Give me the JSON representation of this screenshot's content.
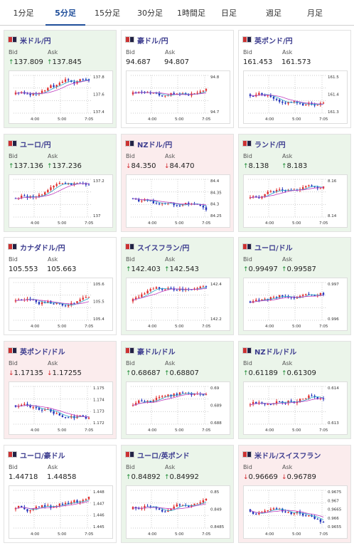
{
  "tabs": [
    "1分足",
    "5分足",
    "15分足",
    "30分足",
    "1時間足",
    "日足",
    "週足",
    "月足"
  ],
  "active_tab": 1,
  "labels": {
    "bid": "Bid",
    "ask": "Ask"
  },
  "colors": {
    "up": "#1b8a32",
    "down": "#d2262b",
    "candle_up": "#e03030",
    "candle_down": "#2233bb",
    "ma1": "#2aa7c9",
    "ma2": "#c040c0"
  },
  "cards": [
    {
      "pair": "米ドル/円",
      "bid": "137.809",
      "ask": "137.845",
      "bid_dir": "up",
      "ask_dir": "up",
      "trend": "up",
      "flag": "us-jp-flag-icon",
      "x_ticks": [
        "4:00",
        "5:00",
        "7:05"
      ],
      "y_ticks": [
        "137.8",
        "137.6",
        "137.4"
      ]
    },
    {
      "pair": "豪ドル/円",
      "bid": "94.687",
      "ask": "94.807",
      "bid_dir": "none",
      "ask_dir": "none",
      "trend": "neutral",
      "flag": "au-jp-flag-icon",
      "x_ticks": [
        "4:00",
        "5:00",
        "7:05"
      ],
      "y_ticks": [
        "94.8",
        "94.7"
      ]
    },
    {
      "pair": "英ポンド/円",
      "bid": "161.453",
      "ask": "161.573",
      "bid_dir": "none",
      "ask_dir": "none",
      "trend": "neutral",
      "flag": "gb-jp-flag-icon",
      "x_ticks": [
        "4:00",
        "5:00",
        "7:05"
      ],
      "y_ticks": [
        "161.5",
        "161.4",
        "161.3"
      ]
    },
    {
      "pair": "ユーロ/円",
      "bid": "137.136",
      "ask": "137.236",
      "bid_dir": "up",
      "ask_dir": "up",
      "trend": "up",
      "flag": "eu-jp-flag-icon",
      "x_ticks": [
        "4:00",
        "5:00",
        "7:05"
      ],
      "y_ticks": [
        "137.2",
        "137"
      ]
    },
    {
      "pair": "NZドル/円",
      "bid": "84.350",
      "ask": "84.470",
      "bid_dir": "down",
      "ask_dir": "down",
      "trend": "down",
      "flag": "nz-jp-flag-icon",
      "x_ticks": [
        "4:00",
        "5:00",
        "7:05"
      ],
      "y_ticks": [
        "84.4",
        "84.35",
        "84.3",
        "84.25"
      ]
    },
    {
      "pair": "ランド/円",
      "bid": "8.138",
      "ask": "8.183",
      "bid_dir": "up",
      "ask_dir": "up",
      "trend": "up",
      "flag": "za-jp-flag-icon",
      "x_ticks": [
        "4:00",
        "5:00",
        "7:05"
      ],
      "y_ticks": [
        "8.16",
        "8.14"
      ]
    },
    {
      "pair": "カナダドル/円",
      "bid": "105.553",
      "ask": "105.663",
      "bid_dir": "none",
      "ask_dir": "none",
      "trend": "neutral",
      "flag": "ca-jp-flag-icon",
      "x_ticks": [
        "4:00",
        "5:00",
        "7:05"
      ],
      "y_ticks": [
        "105.6",
        "105.5",
        "105.4"
      ]
    },
    {
      "pair": "スイスフラン/円",
      "bid": "142.403",
      "ask": "142.543",
      "bid_dir": "up",
      "ask_dir": "up",
      "trend": "up",
      "flag": "ch-jp-flag-icon",
      "x_ticks": [
        "4:00",
        "5:00",
        "7:05"
      ],
      "y_ticks": [
        "142.4",
        "142.2"
      ]
    },
    {
      "pair": "ユーロ/ドル",
      "bid": "0.99497",
      "ask": "0.99587",
      "bid_dir": "up",
      "ask_dir": "up",
      "trend": "up",
      "flag": "eu-us-flag-icon",
      "x_ticks": [
        "4:00",
        "5:00",
        "7:05"
      ],
      "y_ticks": [
        "0.997",
        "0.996"
      ]
    },
    {
      "pair": "英ポンド/ドル",
      "bid": "1.17135",
      "ask": "1.17255",
      "bid_dir": "down",
      "ask_dir": "down",
      "trend": "down",
      "flag": "gb-us-flag-icon",
      "x_ticks": [
        "4:00",
        "5:00",
        "7:05"
      ],
      "y_ticks": [
        "1.175",
        "1.174",
        "1.173",
        "1.172"
      ]
    },
    {
      "pair": "豪ドル/ドル",
      "bid": "0.68687",
      "ask": "0.68807",
      "bid_dir": "up",
      "ask_dir": "up",
      "trend": "up",
      "flag": "au-us-flag-icon",
      "x_ticks": [
        "4:00",
        "5:00",
        "7:05"
      ],
      "y_ticks": [
        "0.69",
        "0.689",
        "0.688"
      ]
    },
    {
      "pair": "NZドル/ドル",
      "bid": "0.61189",
      "ask": "0.61309",
      "bid_dir": "up",
      "ask_dir": "up",
      "trend": "up",
      "flag": "nz-us-flag-icon",
      "x_ticks": [
        "4:00",
        "5:00",
        "7:05"
      ],
      "y_ticks": [
        "0.614",
        "0.613"
      ]
    },
    {
      "pair": "ユーロ/豪ドル",
      "bid": "1.44718",
      "ask": "1.44858",
      "bid_dir": "none",
      "ask_dir": "none",
      "trend": "neutral",
      "flag": "eu-au-flag-icon",
      "x_ticks": [
        "4:00",
        "5:00",
        "7:05"
      ],
      "y_ticks": [
        "1.448",
        "1.447",
        "1.446",
        "1.445"
      ]
    },
    {
      "pair": "ユーロ/英ポンド",
      "bid": "0.84892",
      "ask": "0.84992",
      "bid_dir": "up",
      "ask_dir": "up",
      "trend": "up",
      "flag": "eu-gb-flag-icon",
      "x_ticks": [
        "4:00",
        "5:00",
        "7:05"
      ],
      "y_ticks": [
        "0.85",
        "0.849",
        "0.8485"
      ]
    },
    {
      "pair": "米ドル/スイスフラン",
      "bid": "0.96669",
      "ask": "0.96789",
      "bid_dir": "down",
      "ask_dir": "down",
      "trend": "down",
      "flag": "us-ch-flag-icon",
      "x_ticks": [
        "4:00",
        "5:00",
        "7:05"
      ],
      "y_ticks": [
        "0.9675",
        "0.967",
        "0.9665",
        "0.966",
        "0.9655"
      ]
    }
  ]
}
